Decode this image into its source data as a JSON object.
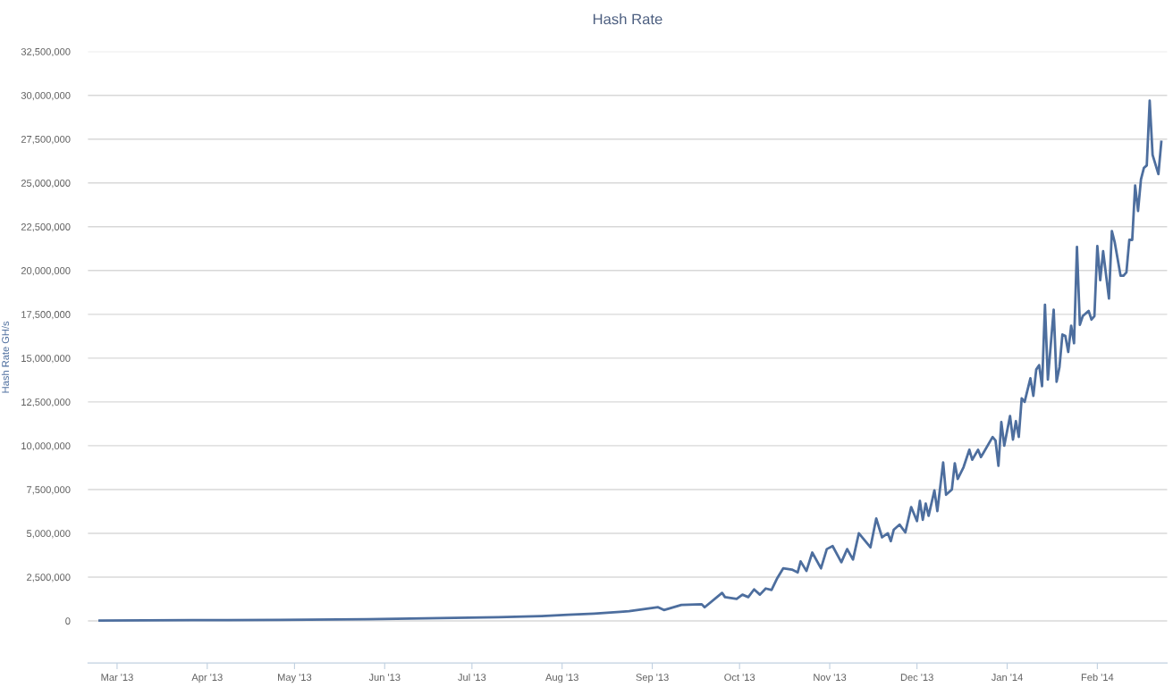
{
  "chart_data": {
    "type": "line",
    "title": "Hash Rate",
    "ylabel": "Hash Rate GH/s",
    "x": [
      "2013-02-23",
      "2013-03-27",
      "2013-04-26",
      "2013-05-26",
      "2013-06-10",
      "2013-06-25",
      "2013-07-10",
      "2013-07-25",
      "2013-08-03",
      "2013-08-12",
      "2013-08-21",
      "2013-08-24",
      "2013-09-03",
      "2013-09-05",
      "2013-09-11",
      "2013-09-18",
      "2013-09-19",
      "2013-09-25",
      "2013-09-26",
      "2013-09-30",
      "2013-10-02",
      "2013-10-04",
      "2013-10-06",
      "2013-10-08",
      "2013-10-10",
      "2013-10-12",
      "2013-10-14",
      "2013-10-16",
      "2013-10-19",
      "2013-10-21",
      "2013-10-22",
      "2013-10-24",
      "2013-10-26",
      "2013-10-29",
      "2013-10-31",
      "2013-11-02",
      "2013-11-05",
      "2013-11-07",
      "2013-11-09",
      "2013-11-11",
      "2013-11-15",
      "2013-11-17",
      "2013-11-19",
      "2013-11-21",
      "2013-11-22",
      "2013-11-23",
      "2013-11-25",
      "2013-11-27",
      "2013-11-29",
      "2013-12-01",
      "2013-12-02",
      "2013-12-03",
      "2013-12-04",
      "2013-12-05",
      "2013-12-07",
      "2013-12-08",
      "2013-12-10",
      "2013-12-11",
      "2013-12-13",
      "2013-12-14",
      "2013-12-15",
      "2013-12-17",
      "2013-12-19",
      "2013-12-20",
      "2013-12-22",
      "2013-12-23",
      "2013-12-27",
      "2013-12-28",
      "2013-12-29",
      "2013-12-30",
      "2013-12-31",
      "2014-01-02",
      "2014-01-03",
      "2014-01-04",
      "2014-01-05",
      "2014-01-06",
      "2014-01-07",
      "2014-01-09",
      "2014-01-10",
      "2014-01-11",
      "2014-01-12",
      "2014-01-13",
      "2014-01-14",
      "2014-01-15",
      "2014-01-17",
      "2014-01-18",
      "2014-01-19",
      "2014-01-20",
      "2014-01-21",
      "2014-01-22",
      "2014-01-23",
      "2014-01-24",
      "2014-01-25",
      "2014-01-26",
      "2014-01-27",
      "2014-01-29",
      "2014-01-30",
      "2014-01-31",
      "2014-02-01",
      "2014-02-02",
      "2014-02-03",
      "2014-02-05",
      "2014-02-06",
      "2014-02-07",
      "2014-02-09",
      "2014-02-10",
      "2014-02-11",
      "2014-02-12",
      "2014-02-13",
      "2014-02-14",
      "2014-02-15",
      "2014-02-16",
      "2014-02-17",
      "2014-02-18",
      "2014-02-19",
      "2014-02-20",
      "2014-02-22",
      "2014-02-23"
    ],
    "series": [
      {
        "color": "#4d6e9e",
        "values": [
          20000,
          40000,
          60000,
          100000,
          130000,
          170000,
          210000,
          280000,
          350000,
          420000,
          520000,
          560000,
          780000,
          620000,
          910000,
          950000,
          780000,
          1600000,
          1360000,
          1260000,
          1500000,
          1360000,
          1800000,
          1500000,
          1850000,
          1770000,
          2450000,
          3000000,
          2930000,
          2770000,
          3400000,
          2850000,
          3900000,
          3000000,
          4100000,
          4270000,
          3350000,
          4100000,
          3500000,
          5000000,
          4200000,
          5850000,
          4770000,
          5000000,
          4550000,
          5200000,
          5500000,
          5050000,
          6500000,
          5700000,
          6850000,
          5770000,
          6700000,
          6000000,
          7450000,
          6270000,
          9050000,
          7200000,
          7500000,
          9000000,
          8100000,
          8770000,
          9770000,
          9200000,
          9770000,
          9350000,
          10500000,
          10300000,
          8850000,
          11350000,
          10000000,
          11700000,
          10350000,
          11400000,
          10500000,
          12700000,
          12500000,
          13850000,
          12850000,
          14350000,
          14600000,
          13400000,
          18050000,
          13770000,
          17770000,
          13650000,
          14500000,
          16350000,
          16270000,
          15350000,
          16850000,
          15850000,
          21350000,
          16900000,
          17400000,
          17700000,
          17200000,
          17400000,
          21400000,
          19450000,
          21100000,
          18400000,
          22250000,
          21600000,
          19700000,
          19700000,
          19900000,
          21750000,
          21750000,
          24850000,
          23400000,
          25200000,
          25850000,
          26000000,
          29700000,
          26600000,
          25500000,
          27350000
        ]
      }
    ],
    "xlim": [
      "2013-02-19",
      "2014-02-25"
    ],
    "xticks": [
      {
        "value": "2013-03-01",
        "label": "Mar '13"
      },
      {
        "value": "2013-04-01",
        "label": "Apr '13"
      },
      {
        "value": "2013-05-01",
        "label": "May '13"
      },
      {
        "value": "2013-06-01",
        "label": "Jun '13"
      },
      {
        "value": "2013-07-01",
        "label": "Jul '13"
      },
      {
        "value": "2013-08-01",
        "label": "Aug '13"
      },
      {
        "value": "2013-09-01",
        "label": "Sep '13"
      },
      {
        "value": "2013-10-01",
        "label": "Oct '13"
      },
      {
        "value": "2013-11-01",
        "label": "Nov '13"
      },
      {
        "value": "2013-12-01",
        "label": "Dec '13"
      },
      {
        "value": "2014-01-01",
        "label": "Jan '14"
      },
      {
        "value": "2014-02-01",
        "label": "Feb '14"
      }
    ],
    "ylim": [
      -2400000,
      32500000
    ],
    "yticks": [
      0,
      {
        "value": 2500000,
        "label": "2,500,000"
      },
      {
        "value": 5000000,
        "label": "5,000,000"
      },
      {
        "value": 7500000,
        "label": "7,500,000"
      },
      {
        "value": 10000000,
        "label": "10,000,000"
      },
      {
        "value": 12500000,
        "label": "12,500,000"
      },
      {
        "value": 15000000,
        "label": "15,000,000"
      },
      {
        "value": 17500000,
        "label": "17,500,000"
      },
      {
        "value": 20000000,
        "label": "20,000,000"
      },
      {
        "value": 22500000,
        "label": "22,500,000"
      },
      {
        "value": 25000000,
        "label": "25,000,000"
      },
      {
        "value": 27500000,
        "label": "27,500,000"
      },
      {
        "value": 30000000,
        "label": "30,000,000"
      },
      {
        "value": 32500000,
        "label": "32,500,000"
      }
    ],
    "grid": "y",
    "marker": "none",
    "line_style": "solid"
  }
}
